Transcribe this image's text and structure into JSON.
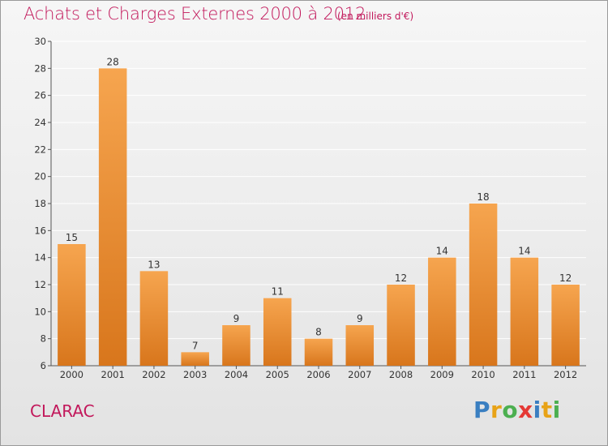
{
  "header": {
    "title": "Achats et Charges Externes 2000 à 2012",
    "subtitle": "(en milliers d'€)"
  },
  "footer": {
    "commune": "CLARAC",
    "brand_letters": [
      {
        "char": "P",
        "color": "#3a7fc1"
      },
      {
        "char": "r",
        "color": "#e8a317"
      },
      {
        "char": "o",
        "color": "#4caf50"
      },
      {
        "char": "x",
        "color": "#e53935"
      },
      {
        "char": "i",
        "color": "#3a7fc1"
      },
      {
        "char": "t",
        "color": "#e8a317"
      },
      {
        "char": "i",
        "color": "#4caf50"
      }
    ]
  },
  "colors": {
    "accent": "#c2185b",
    "bar_top": "#f6a54f",
    "bar_bottom": "#d8761c",
    "grid": "#ffffff",
    "axis": "#555555"
  },
  "chart_data": {
    "type": "bar",
    "categories": [
      "2000",
      "2001",
      "2002",
      "2003",
      "2004",
      "2005",
      "2006",
      "2007",
      "2008",
      "2009",
      "2010",
      "2011",
      "2012"
    ],
    "values": [
      15,
      28,
      13,
      7,
      9,
      11,
      8,
      9,
      12,
      14,
      18,
      14,
      12
    ],
    "data_labels": [
      "15",
      "28",
      "13",
      "7",
      "9",
      "11",
      "8",
      "9",
      "12",
      "14",
      "18",
      "14",
      "12"
    ],
    "title": "Achats et Charges Externes 2000 à 2012",
    "subtitle": "(en milliers d'€)",
    "xlabel": "",
    "ylabel": "",
    "ylim": [
      6,
      30
    ],
    "yticks": [
      6,
      8,
      10,
      12,
      14,
      16,
      18,
      20,
      22,
      24,
      26,
      28,
      30
    ],
    "grid": true,
    "legend": "none"
  }
}
